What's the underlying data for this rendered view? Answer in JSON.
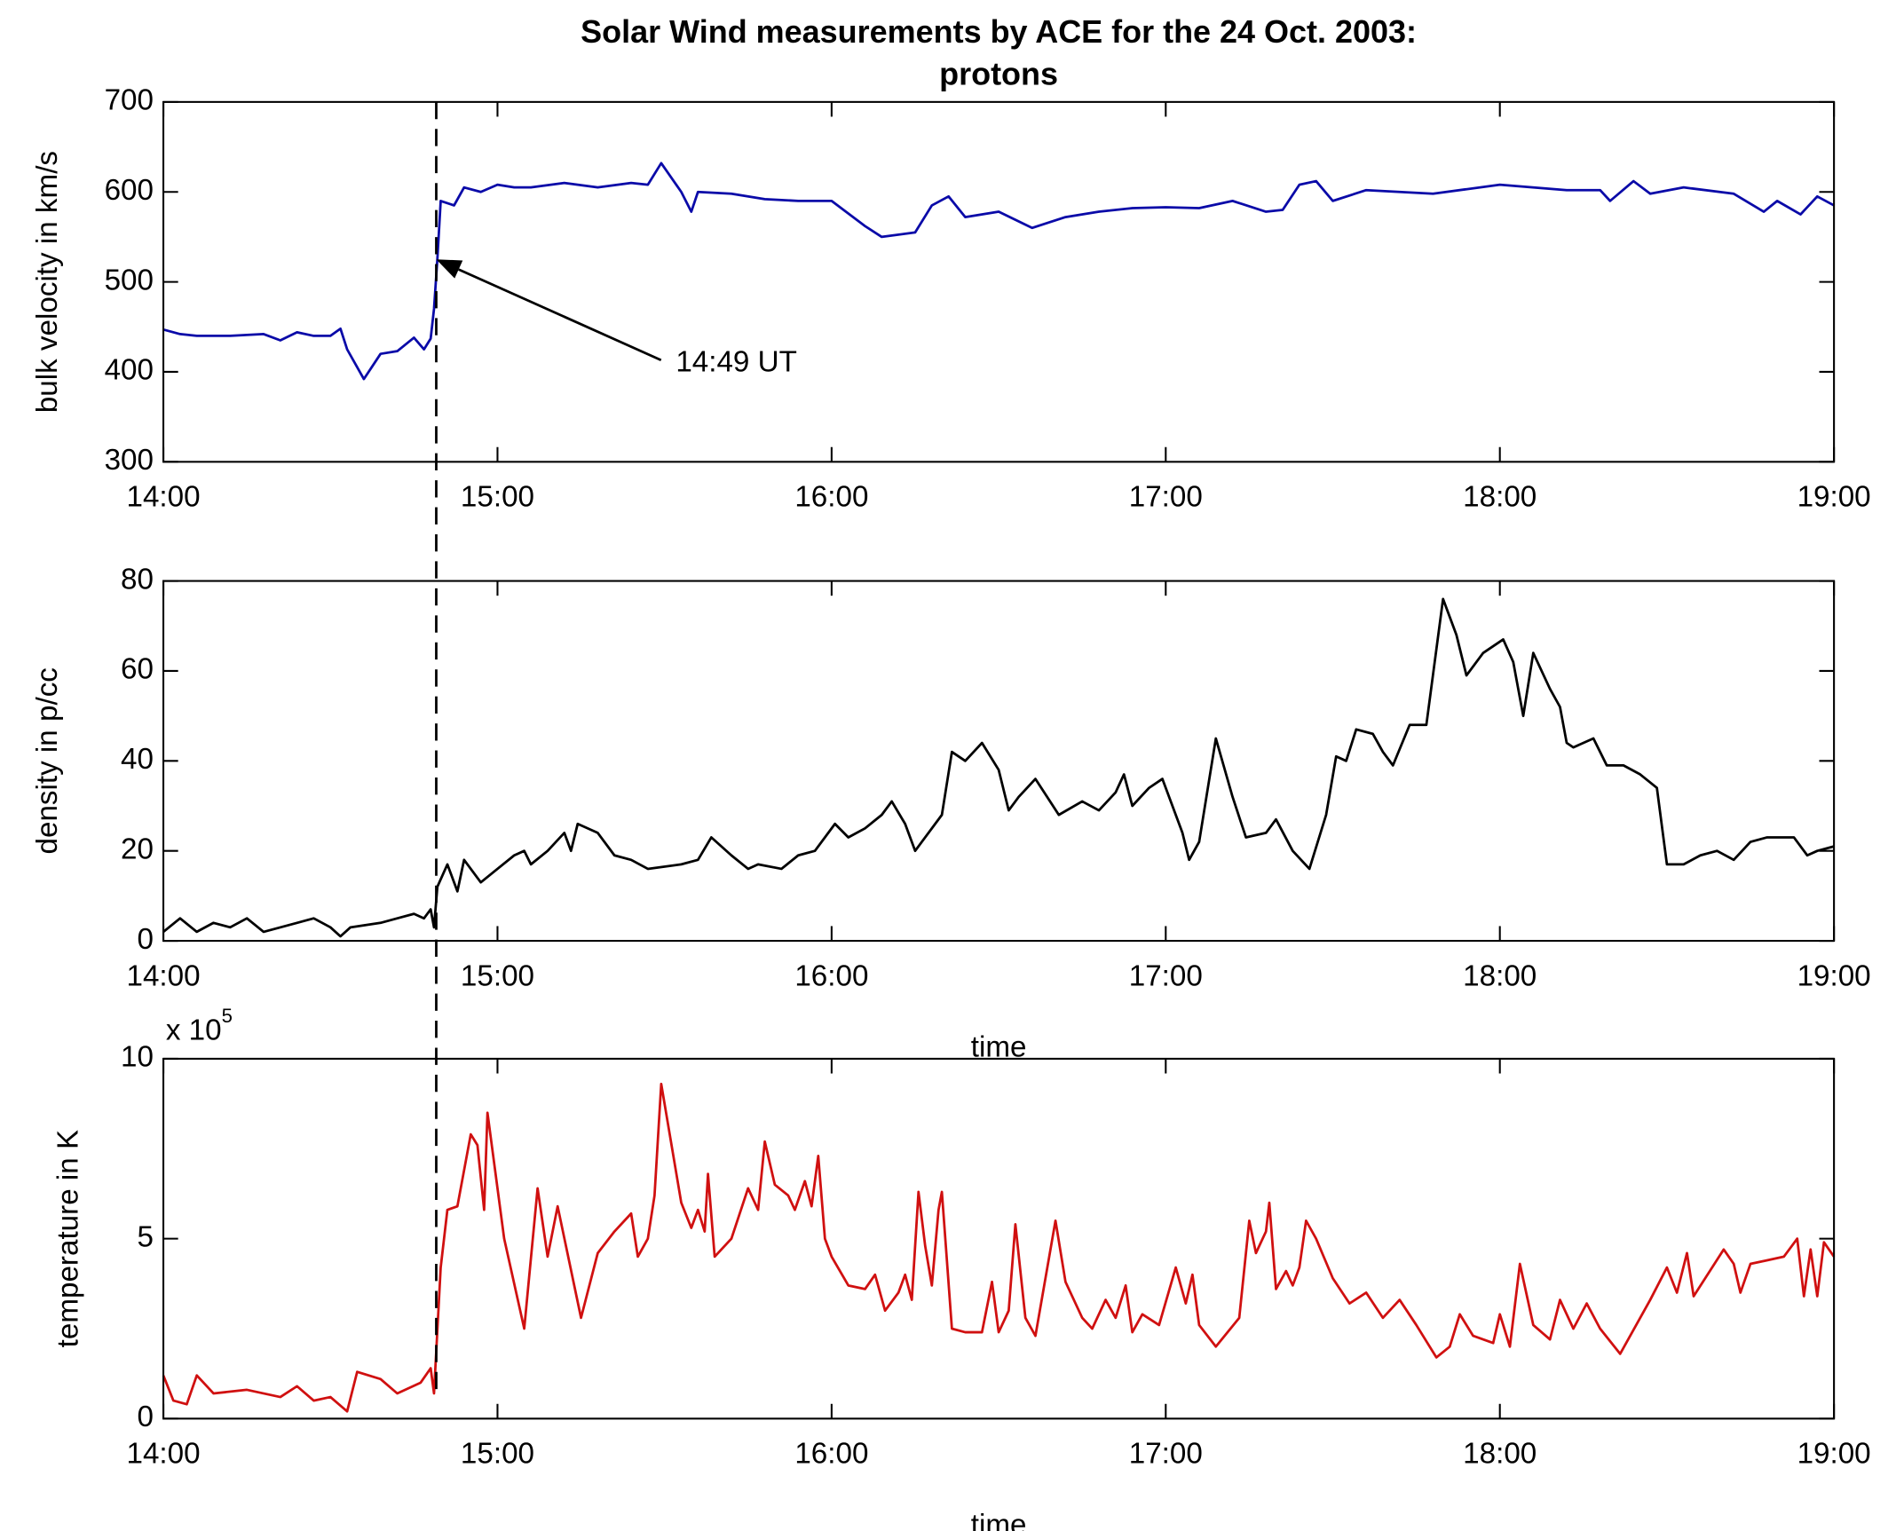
{
  "chart_data": [
    {
      "type": "line",
      "title_lines": [
        "Solar Wind measurements by ACE for the 24 Oct. 2003:",
        "protons"
      ],
      "ylabel": "bulk velocity in km/s",
      "color": "#0a0aa8",
      "xlim": [
        14,
        19
      ],
      "xticks": [
        {
          "value": 14,
          "label": "14:00"
        },
        {
          "value": 15,
          "label": "15:00"
        },
        {
          "value": 16,
          "label": "16:00"
        },
        {
          "value": 17,
          "label": "17:00"
        },
        {
          "value": 18,
          "label": "18:00"
        },
        {
          "value": 19,
          "label": "19:00"
        }
      ],
      "ylim": [
        300,
        700
      ],
      "yticks": [
        300,
        400,
        500,
        600,
        700
      ],
      "annotation": {
        "text": "14:49 UT",
        "x": 14.8167,
        "y": 525
      },
      "x": [
        14.0,
        14.05,
        14.1,
        14.2,
        14.3,
        14.35,
        14.4,
        14.45,
        14.5,
        14.53,
        14.55,
        14.6,
        14.65,
        14.7,
        14.75,
        14.78,
        14.8,
        14.81,
        14.82,
        14.83,
        14.87,
        14.9,
        14.95,
        15.0,
        15.05,
        15.1,
        15.2,
        15.3,
        15.4,
        15.45,
        15.49,
        15.55,
        15.58,
        15.6,
        15.7,
        15.8,
        15.9,
        16.0,
        16.1,
        16.15,
        16.25,
        16.3,
        16.35,
        16.4,
        16.5,
        16.6,
        16.7,
        16.8,
        16.9,
        17.0,
        17.1,
        17.2,
        17.3,
        17.35,
        17.4,
        17.45,
        17.5,
        17.6,
        17.7,
        17.8,
        18.0,
        18.2,
        18.3,
        18.33,
        18.4,
        18.45,
        18.55,
        18.7,
        18.79,
        18.83,
        18.9,
        18.95,
        19.0
      ],
      "values": [
        447,
        442,
        440,
        440,
        442,
        435,
        444,
        440,
        440,
        448,
        425,
        392,
        420,
        423,
        438,
        425,
        437,
        470,
        525,
        590,
        585,
        605,
        600,
        608,
        605,
        605,
        610,
        605,
        610,
        608,
        632,
        600,
        578,
        600,
        598,
        592,
        590,
        590,
        562,
        550,
        555,
        585,
        595,
        572,
        578,
        560,
        572,
        578,
        582,
        583,
        582,
        590,
        578,
        580,
        608,
        612,
        590,
        602,
        600,
        598,
        608,
        602,
        602,
        590,
        612,
        598,
        605,
        598,
        578,
        590,
        575,
        595,
        585
      ]
    },
    {
      "type": "line",
      "ylabel": "density in p/cc",
      "xlabel": "time",
      "color": "#000000",
      "xlim": [
        14,
        19
      ],
      "xticks": [
        {
          "value": 14,
          "label": "14:00"
        },
        {
          "value": 15,
          "label": "15:00"
        },
        {
          "value": 16,
          "label": "16:00"
        },
        {
          "value": 17,
          "label": "17:00"
        },
        {
          "value": 18,
          "label": "18:00"
        },
        {
          "value": 19,
          "label": "19:00"
        }
      ],
      "ylim": [
        0,
        80
      ],
      "yticks": [
        0,
        20,
        40,
        60,
        80
      ],
      "x": [
        14.0,
        14.05,
        14.1,
        14.15,
        14.2,
        14.25,
        14.3,
        14.4,
        14.45,
        14.5,
        14.53,
        14.56,
        14.65,
        14.7,
        14.75,
        14.78,
        14.8,
        14.81,
        14.82,
        14.85,
        14.88,
        14.9,
        14.95,
        15.0,
        15.05,
        15.08,
        15.1,
        15.15,
        15.2,
        15.22,
        15.24,
        15.3,
        15.35,
        15.4,
        15.45,
        15.55,
        15.6,
        15.64,
        15.7,
        15.75,
        15.78,
        15.85,
        15.9,
        15.95,
        16.01,
        16.05,
        16.1,
        16.15,
        16.18,
        16.22,
        16.25,
        16.28,
        16.33,
        16.36,
        16.4,
        16.45,
        16.5,
        16.53,
        16.56,
        16.61,
        16.68,
        16.75,
        16.8,
        16.85,
        16.875,
        16.9,
        16.95,
        16.99,
        17.05,
        17.07,
        17.1,
        17.15,
        17.2,
        17.24,
        17.3,
        17.33,
        17.38,
        17.43,
        17.48,
        17.51,
        17.54,
        17.57,
        17.62,
        17.65,
        17.68,
        17.73,
        17.78,
        17.83,
        17.87,
        17.9,
        17.95,
        18.01,
        18.04,
        18.07,
        18.1,
        18.15,
        18.18,
        18.2,
        18.22,
        18.28,
        18.32,
        18.37,
        18.42,
        18.47,
        18.5,
        18.55,
        18.6,
        18.65,
        18.7,
        18.75,
        18.8,
        18.88,
        18.92,
        18.95,
        19.0
      ],
      "values": [
        2,
        5,
        2,
        4,
        3,
        5,
        2,
        4,
        5,
        3,
        1,
        3,
        4,
        5,
        6,
        5,
        7,
        3,
        12,
        17,
        11,
        18,
        13,
        16,
        19,
        20,
        17,
        20,
        24,
        20,
        26,
        24,
        19,
        18,
        16,
        17,
        18,
        23,
        19,
        16,
        17,
        16,
        19,
        20,
        26,
        23,
        25,
        28,
        31,
        26,
        20,
        23,
        28,
        42,
        40,
        44,
        38,
        29,
        32,
        36,
        28,
        31,
        29,
        33,
        37,
        30,
        34,
        36,
        24,
        18,
        22,
        45,
        32,
        23,
        24,
        27,
        20,
        16,
        28,
        41,
        40,
        47,
        46,
        42,
        39,
        48,
        48,
        76,
        68,
        59,
        64,
        67,
        62,
        50,
        64,
        56,
        52,
        44,
        43,
        45,
        39,
        39,
        37,
        34,
        17,
        17,
        19,
        20,
        18,
        22,
        23,
        23,
        19,
        20,
        21
      ]
    },
    {
      "type": "line",
      "ylabel": "temperature in K",
      "xlabel": "time",
      "y_multiplier": {
        "base": "x 10",
        "exponent": "5"
      },
      "color": "#d01010",
      "xlim": [
        14,
        19
      ],
      "xticks": [
        {
          "value": 14,
          "label": "14:00"
        },
        {
          "value": 15,
          "label": "15:00"
        },
        {
          "value": 16,
          "label": "16:00"
        },
        {
          "value": 17,
          "label": "17:00"
        },
        {
          "value": 18,
          "label": "18:00"
        },
        {
          "value": 19,
          "label": "19:00"
        }
      ],
      "ylim": [
        0,
        10
      ],
      "yticks": [
        0,
        5,
        10
      ],
      "x": [
        14.0,
        14.03,
        14.07,
        14.1,
        14.15,
        14.25,
        14.35,
        14.4,
        14.45,
        14.5,
        14.55,
        14.58,
        14.65,
        14.7,
        14.77,
        14.8,
        14.81,
        14.83,
        14.85,
        14.88,
        14.92,
        14.94,
        14.96,
        14.97,
        15.02,
        15.08,
        15.12,
        15.15,
        15.18,
        15.25,
        15.3,
        15.35,
        15.4,
        15.42,
        15.45,
        15.47,
        15.49,
        15.55,
        15.58,
        15.6,
        15.62,
        15.63,
        15.65,
        15.7,
        15.75,
        15.78,
        15.8,
        15.83,
        15.87,
        15.89,
        15.92,
        15.94,
        15.96,
        15.98,
        16.0,
        16.05,
        16.1,
        16.13,
        16.16,
        16.2,
        16.22,
        16.24,
        16.26,
        16.28,
        16.3,
        16.32,
        16.33,
        16.36,
        16.4,
        16.45,
        16.48,
        16.5,
        16.53,
        16.55,
        16.58,
        16.61,
        16.67,
        16.7,
        16.75,
        16.78,
        16.82,
        16.85,
        16.88,
        16.9,
        16.93,
        16.98,
        17.03,
        17.06,
        17.08,
        17.1,
        17.15,
        17.22,
        17.25,
        17.27,
        17.3,
        17.31,
        17.33,
        17.36,
        17.38,
        17.4,
        17.42,
        17.45,
        17.5,
        17.55,
        17.6,
        17.65,
        17.7,
        17.75,
        17.81,
        17.85,
        17.88,
        17.92,
        17.98,
        18.0,
        18.03,
        18.06,
        18.1,
        18.15,
        18.18,
        18.22,
        18.26,
        18.3,
        18.36,
        18.45,
        18.5,
        18.53,
        18.56,
        18.58,
        18.67,
        18.7,
        18.72,
        18.75,
        18.8,
        18.85,
        18.89,
        18.91,
        18.93,
        18.95,
        18.97,
        19.0
      ],
      "values": [
        1.2,
        0.5,
        0.4,
        1.2,
        0.7,
        0.8,
        0.6,
        0.9,
        0.5,
        0.6,
        0.2,
        1.3,
        1.1,
        0.7,
        1.0,
        1.4,
        0.7,
        4.2,
        5.8,
        5.9,
        7.9,
        7.6,
        5.8,
        8.5,
        5.0,
        2.5,
        6.4,
        4.5,
        5.9,
        2.8,
        4.6,
        5.2,
        5.7,
        4.5,
        5.0,
        6.2,
        9.3,
        6.0,
        5.3,
        5.8,
        5.2,
        6.8,
        4.5,
        5.0,
        6.4,
        5.8,
        7.7,
        6.5,
        6.2,
        5.8,
        6.6,
        5.9,
        7.3,
        5.0,
        4.5,
        3.7,
        3.6,
        4.0,
        3.0,
        3.5,
        4.0,
        3.3,
        6.3,
        4.8,
        3.7,
        5.8,
        6.3,
        2.5,
        2.4,
        2.4,
        3.8,
        2.4,
        3.0,
        5.4,
        2.8,
        2.3,
        5.5,
        3.8,
        2.8,
        2.5,
        3.3,
        2.8,
        3.7,
        2.4,
        2.9,
        2.6,
        4.2,
        3.2,
        4.0,
        2.6,
        2.0,
        2.8,
        5.5,
        4.6,
        5.2,
        6.0,
        3.6,
        4.1,
        3.7,
        4.2,
        5.5,
        5.0,
        3.9,
        3.2,
        3.5,
        2.8,
        3.3,
        2.6,
        1.7,
        2.0,
        2.9,
        2.3,
        2.1,
        2.9,
        2.0,
        4.3,
        2.6,
        2.2,
        3.3,
        2.5,
        3.2,
        2.5,
        1.8,
        3.3,
        4.2,
        3.5,
        4.6,
        3.4,
        4.7,
        4.3,
        3.5,
        4.3,
        4.4,
        4.5,
        5.0,
        3.4,
        4.7,
        3.4,
        4.9,
        4.5
      ]
    }
  ]
}
